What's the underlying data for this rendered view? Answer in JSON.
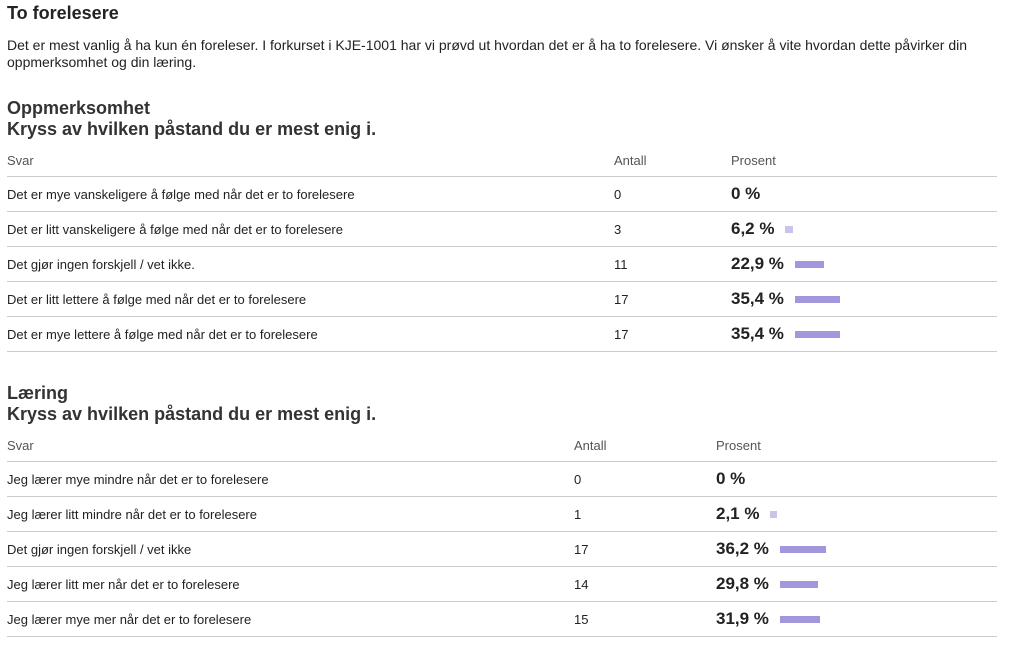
{
  "title": "To forelesere",
  "intro": "Det er mest vanlig å ha kun én foreleser. I forkurset i KJE-1001 har vi prøvd ut hvordan det er å ha to forelesere. Vi ønsker å vite hvordan dette påvirker din oppmerksomhet og din læring.",
  "colors": {
    "bar_full": "#a097dd",
    "bar_small": "#c9c4ea"
  },
  "sections": [
    {
      "heading": "Oppmerksomhet",
      "question": "Kryss av hvilken påstand du er mest enig i.",
      "columns": {
        "answer": "Svar",
        "count": "Antall",
        "percent": "Prosent"
      },
      "rows": [
        {
          "answer": "Det er mye vanskeligere å følge med når det er to forelesere",
          "count": "0",
          "percent": "0 %",
          "share": 0
        },
        {
          "answer": "Det er litt vanskeligere å følge med når det er to forelesere",
          "count": "3",
          "percent": "6,2 %",
          "share": 6.2
        },
        {
          "answer": "Det gjør ingen forskjell / vet ikke.",
          "count": "11",
          "percent": "22,9 %",
          "share": 22.9
        },
        {
          "answer": "Det er litt lettere å følge med når det er to forelesere",
          "count": "17",
          "percent": "35,4 %",
          "share": 35.4
        },
        {
          "answer": "Det er mye lettere å følge med når det er to forelesere",
          "count": "17",
          "percent": "35,4 %",
          "share": 35.4
        }
      ]
    },
    {
      "heading": "Læring",
      "question": "Kryss av hvilken påstand du er mest enig i.",
      "columns": {
        "answer": "Svar",
        "count": "Antall",
        "percent": "Prosent"
      },
      "rows": [
        {
          "answer": "Jeg lærer mye mindre når det er to forelesere",
          "count": "0",
          "percent": "0 %",
          "share": 0
        },
        {
          "answer": "Jeg lærer litt mindre når det er to forelesere",
          "count": "1",
          "percent": "2,1 %",
          "share": 2.1
        },
        {
          "answer": "Det gjør ingen forskjell / vet ikke",
          "count": "17",
          "percent": "36,2 %",
          "share": 36.2
        },
        {
          "answer": "Jeg lærer litt mer når det er to forelesere",
          "count": "14",
          "percent": "29,8 %",
          "share": 29.8
        },
        {
          "answer": "Jeg lærer mye mer når det er to forelesere",
          "count": "15",
          "percent": "31,9 %",
          "share": 31.9
        }
      ]
    }
  ]
}
